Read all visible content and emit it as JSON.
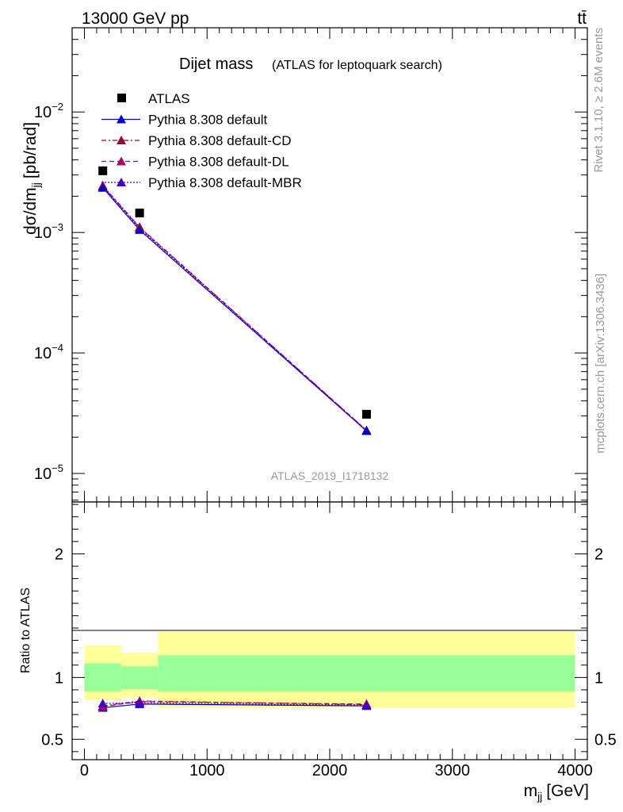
{
  "header": {
    "energy_label": "13000 GeV pp",
    "process_label": "tt̄"
  },
  "side_labels": {
    "rivet": "Rivet 3.1.10, ≥ 2.6M events",
    "mcplots": "mcplots.cern.ch [arXiv:1306.3436]"
  },
  "chart_data": [
    {
      "type": "scatter",
      "panel": "main",
      "title": "Dijet mass",
      "subtitle": "(ATLAS for leptoquark search)",
      "ylabel_main": "dσ/dm",
      "ylabel_sub": "jj",
      "ylabel_unit": "[pb/rad]",
      "watermark": "ATLAS_2019_I1718132",
      "y_scale": "log",
      "ylim": [
        5.8e-06,
        0.05
      ],
      "xlim": [
        -100,
        4100
      ],
      "y_ticks": [
        {
          "value": 0.01,
          "base": "10",
          "exp": "−2"
        },
        {
          "value": 0.001,
          "base": "10",
          "exp": "−3"
        },
        {
          "value": 0.0001,
          "base": "10",
          "exp": "−4"
        },
        {
          "value": 1e-05,
          "base": "10",
          "exp": "−5"
        }
      ],
      "legend_position": "top-left",
      "x": [
        150,
        450,
        2300
      ],
      "series": [
        {
          "name": "ATLAS",
          "values": [
            0.00325,
            0.00145,
            3.1e-05
          ],
          "color": "#000000",
          "marker": "square",
          "line": "none"
        },
        {
          "name": "Pythia 8.308 default",
          "values": [
            0.00235,
            0.00105,
            2.25e-05
          ],
          "color": "#0000cc",
          "marker": "triangle",
          "line": "solid"
        },
        {
          "name": "Pythia 8.308 default-CD",
          "values": [
            0.00245,
            0.00111,
            2.28e-05
          ],
          "color": "#990033",
          "marker": "triangle",
          "line": "dashdot"
        },
        {
          "name": "Pythia 8.308 default-DL",
          "values": [
            0.00242,
            0.0011,
            2.28e-05
          ],
          "color": "#aa0066",
          "marker": "triangle",
          "line": "dashed"
        },
        {
          "name": "Pythia 8.308 default-MBR",
          "values": [
            0.0024,
            0.00108,
            2.26e-05
          ],
          "color": "#4400bb",
          "marker": "triangle",
          "line": "dotted"
        }
      ]
    },
    {
      "type": "scatter",
      "panel": "ratio",
      "ylabel": "Ratio to ATLAS",
      "xlabel_main": "m",
      "xlabel_sub": "jj",
      "xlabel_unit": "[GeV]",
      "ylim": [
        0.335,
        2.42
      ],
      "xlim": [
        -100,
        4100
      ],
      "y_ticks": [
        0.5,
        1,
        2
      ],
      "x_ticks": [
        0,
        1000,
        2000,
        3000,
        4000
      ],
      "bins": [
        [
          0,
          300
        ],
        [
          300,
          600
        ],
        [
          600,
          4000
        ]
      ],
      "band_green": [
        [
          0.885,
          1.115
        ],
        [
          0.905,
          1.09
        ],
        [
          0.885,
          1.18
        ]
      ],
      "band_yellow": [
        [
          0.82,
          1.26
        ],
        [
          0.835,
          1.2
        ],
        [
          0.755,
          1.37
        ]
      ],
      "x": [
        150,
        450,
        2300
      ],
      "series": [
        {
          "name": "Pythia 8.308 default",
          "values": [
            0.755,
            0.785,
            0.77
          ],
          "err": [
            0.01,
            0.01,
            0.03
          ]
        },
        {
          "name": "Pythia 8.308 default-CD",
          "values": [
            0.77,
            0.81,
            0.78
          ],
          "err": [
            0.01,
            0.01,
            0.035
          ]
        },
        {
          "name": "Pythia 8.308 default-DL",
          "values": [
            0.765,
            0.805,
            0.785
          ],
          "err": [
            0.01,
            0.01,
            0.035
          ]
        },
        {
          "name": "Pythia 8.308 default-MBR",
          "values": [
            0.79,
            0.795,
            0.775
          ],
          "err": [
            0.01,
            0.01,
            0.03
          ]
        }
      ]
    }
  ]
}
